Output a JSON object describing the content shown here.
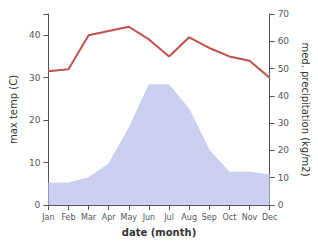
{
  "chart_data": {
    "type": "line",
    "categories": [
      "Jan",
      "Feb",
      "Mar",
      "Apr",
      "May",
      "Jun",
      "Jul",
      "Aug",
      "Sep",
      "Oct",
      "Nov",
      "Dec"
    ],
    "series": [
      {
        "type": "area",
        "color": "#c5caee",
        "axis": "y2",
        "values": [
          8,
          8,
          10,
          15,
          28,
          44,
          44,
          35,
          20,
          12,
          12,
          11
        ]
      },
      {
        "type": "line",
        "color": "#c0504d",
        "values": [
          31.5,
          32.0,
          40.0,
          41.0,
          42.0,
          39.0,
          35.0,
          39.5,
          37.0,
          35.0,
          34.0,
          30.0
        ]
      }
    ],
    "xlabel": "date (month)",
    "ylabel": "max temp (C)",
    "y2label": "med. precipitation (kg/m2)",
    "ylim": [
      0,
      45
    ],
    "yticks": [
      0,
      10,
      20,
      30,
      40
    ],
    "y2lim": [
      0,
      70
    ],
    "y2ticks": [
      0,
      10,
      20,
      30,
      40,
      50,
      60,
      70
    ],
    "grid": false
  }
}
